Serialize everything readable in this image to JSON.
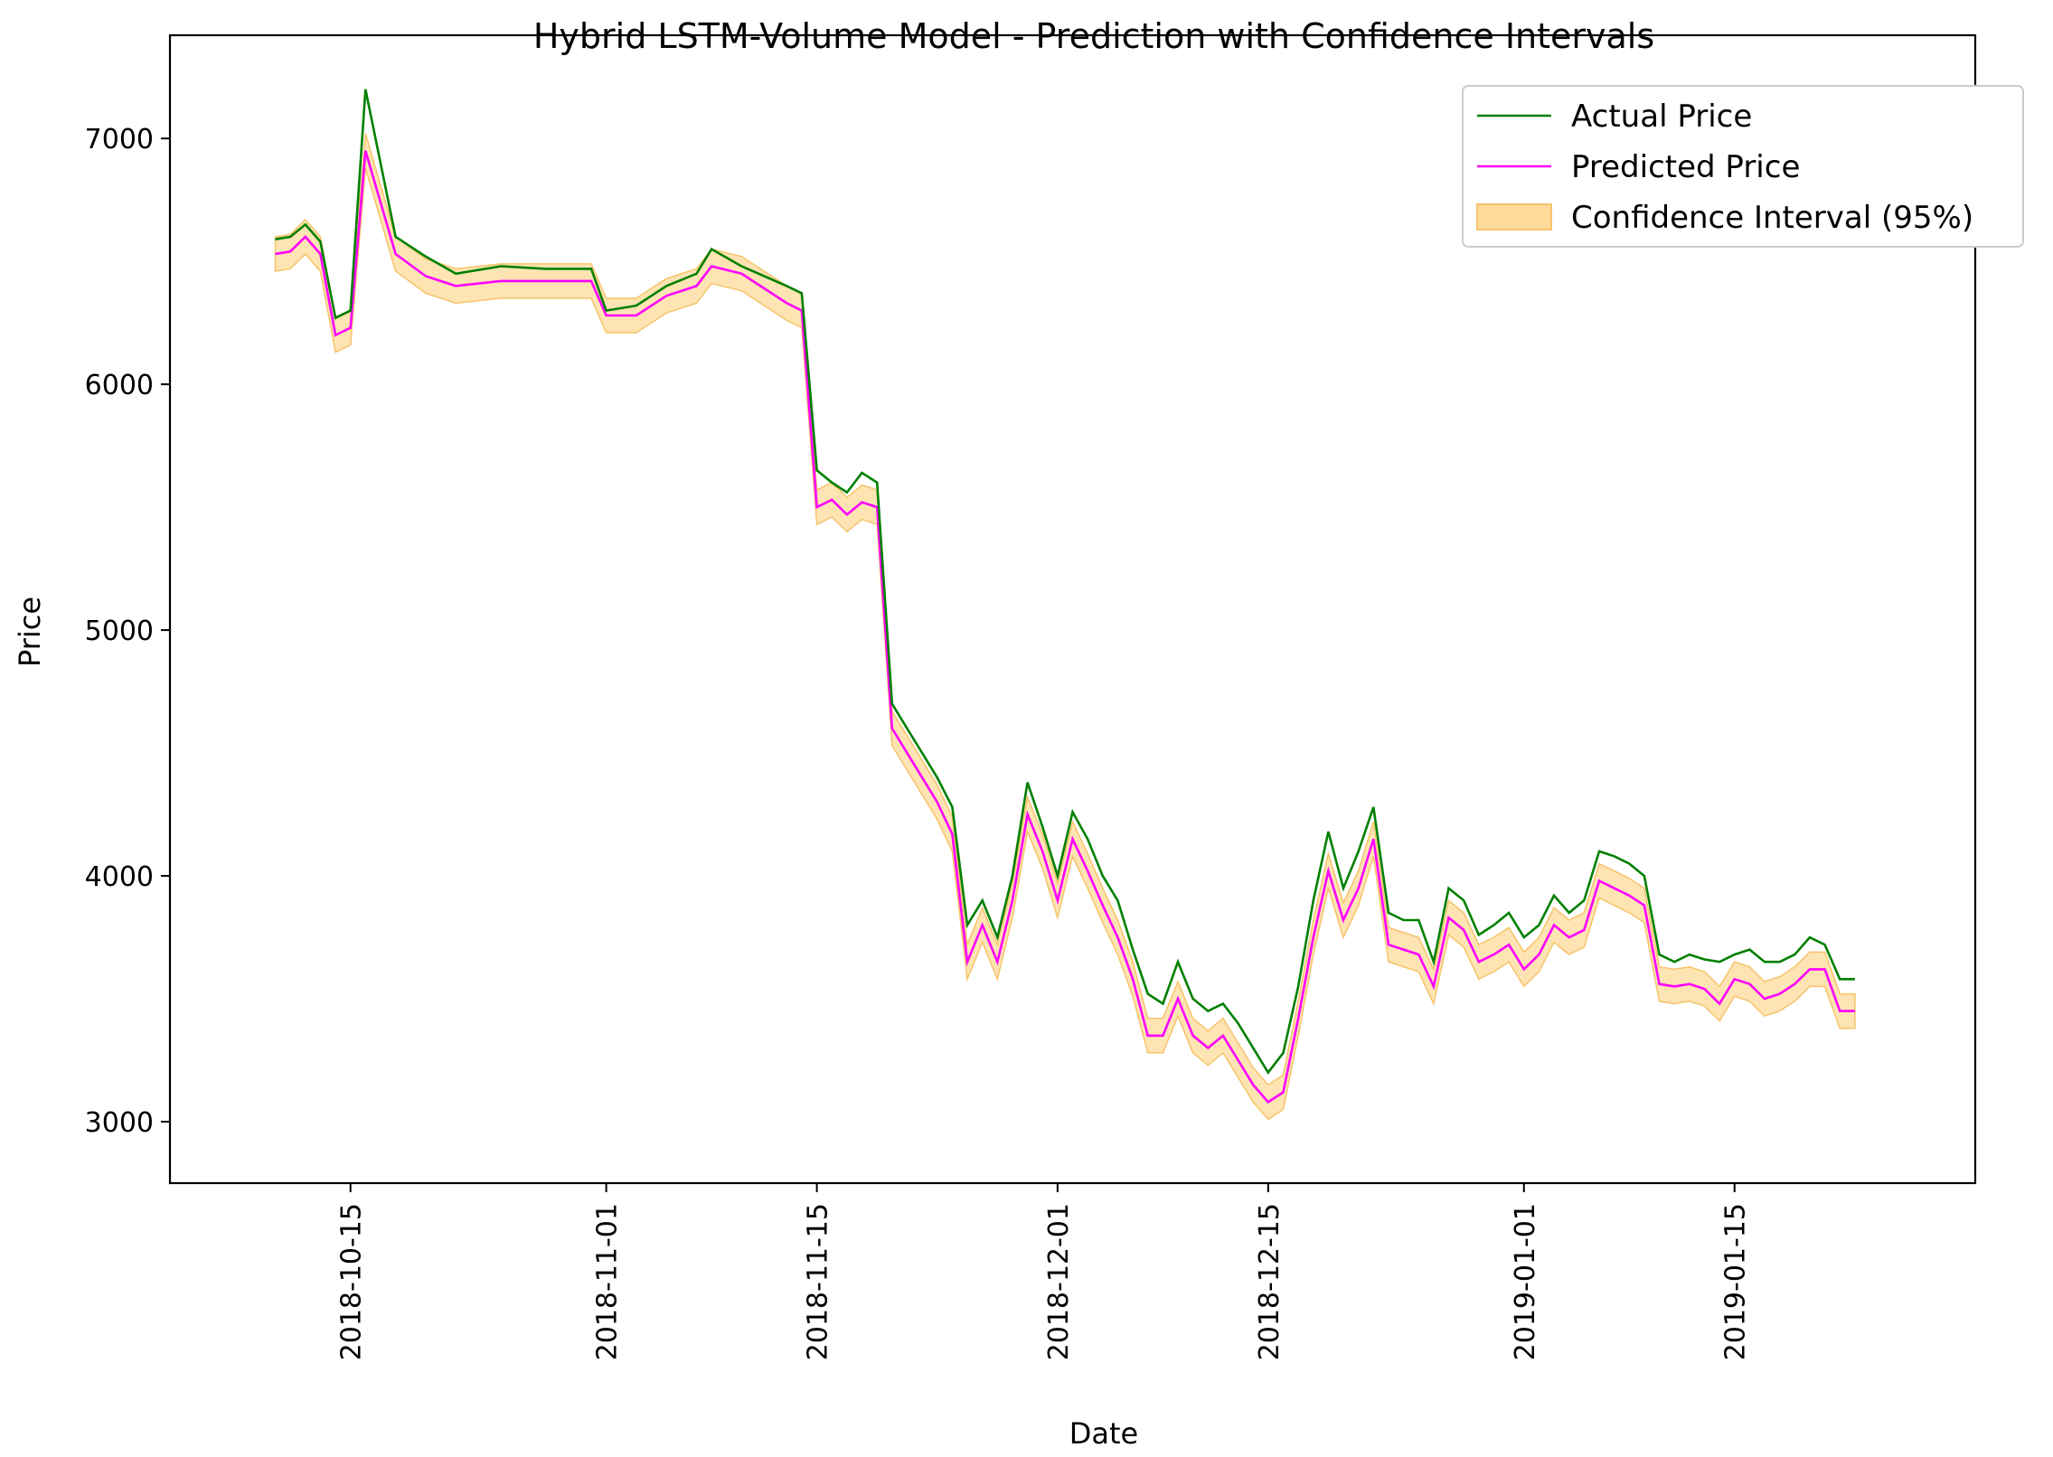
{
  "chart_data": {
    "type": "line",
    "title": "Hybrid LSTM-Volume Model - Prediction with Confidence Intervals",
    "xlabel": "Date",
    "ylabel": "Price",
    "ylim": [
      2750,
      7420
    ],
    "xlim": [
      "2018-10-03",
      "2019-01-31"
    ],
    "grid": false,
    "legend_position": "top-right",
    "x_ticks": [
      "2018-10-15",
      "2018-11-01",
      "2018-11-15",
      "2018-12-01",
      "2018-12-15",
      "2019-01-01",
      "2019-01-15"
    ],
    "y_ticks": [
      3000,
      4000,
      5000,
      6000,
      7000
    ],
    "colors": {
      "actual": "#008000",
      "predicted": "#ff00ff",
      "band": "#ffdb9a",
      "band_edge": "#f6c36a"
    },
    "legend": {
      "actual": "Actual Price",
      "predicted": "Predicted Price",
      "band": "Confidence Interval (95%)"
    },
    "series": [
      {
        "name": "Actual Price",
        "x": [
          "2018-10-10",
          "2018-10-11",
          "2018-10-12",
          "2018-10-13",
          "2018-10-14",
          "2018-10-15",
          "2018-10-16",
          "2018-10-18",
          "2018-10-20",
          "2018-10-22",
          "2018-10-25",
          "2018-10-28",
          "2018-10-31",
          "2018-11-01",
          "2018-11-03",
          "2018-11-05",
          "2018-11-07",
          "2018-11-08",
          "2018-11-10",
          "2018-11-13",
          "2018-11-14",
          "2018-11-15",
          "2018-11-16",
          "2018-11-17",
          "2018-11-18",
          "2018-11-19",
          "2018-11-20",
          "2018-11-21",
          "2018-11-22",
          "2018-11-23",
          "2018-11-24",
          "2018-11-25",
          "2018-11-26",
          "2018-11-27",
          "2018-11-28",
          "2018-11-29",
          "2018-11-30",
          "2018-12-01",
          "2018-12-02",
          "2018-12-03",
          "2018-12-04",
          "2018-12-05",
          "2018-12-06",
          "2018-12-07",
          "2018-12-08",
          "2018-12-09",
          "2018-12-10",
          "2018-12-11",
          "2018-12-12",
          "2018-12-13",
          "2018-12-14",
          "2018-12-15",
          "2018-12-16",
          "2018-12-17",
          "2018-12-18",
          "2018-12-19",
          "2018-12-20",
          "2018-12-21",
          "2018-12-22",
          "2018-12-23",
          "2018-12-24",
          "2018-12-25",
          "2018-12-26",
          "2018-12-27",
          "2018-12-28",
          "2018-12-29",
          "2018-12-30",
          "2018-12-31",
          "2019-01-01",
          "2019-01-02",
          "2019-01-03",
          "2019-01-04",
          "2019-01-05",
          "2019-01-06",
          "2019-01-07",
          "2019-01-08",
          "2019-01-09",
          "2019-01-10",
          "2019-01-11",
          "2019-01-12",
          "2019-01-13",
          "2019-01-14",
          "2019-01-15",
          "2019-01-16",
          "2019-01-17",
          "2019-01-18",
          "2019-01-19",
          "2019-01-20",
          "2019-01-21",
          "2019-01-22",
          "2019-01-23"
        ],
        "values": [
          6590,
          6600,
          6650,
          6580,
          6270,
          6300,
          7200,
          6600,
          6520,
          6450,
          6480,
          6470,
          6470,
          6300,
          6320,
          6400,
          6450,
          6550,
          6480,
          6400,
          6370,
          5650,
          5600,
          5560,
          5640,
          5600,
          4700,
          4600,
          4500,
          4400,
          4280,
          3800,
          3900,
          3750,
          4000,
          4380,
          4200,
          4000,
          4260,
          4150,
          4000,
          3900,
          3700,
          3520,
          3480,
          3650,
          3500,
          3450,
          3480,
          3400,
          3300,
          3200,
          3280,
          3550,
          3900,
          4180,
          3950,
          4100,
          4280,
          3850,
          3820,
          3820,
          3650,
          3950,
          3900,
          3760,
          3800,
          3850,
          3750,
          3800,
          3920,
          3850,
          3900,
          4100,
          4080,
          4050,
          4000,
          3680,
          3650,
          3680,
          3660,
          3650,
          3680,
          3700,
          3650,
          3650,
          3680,
          3750,
          3720,
          3580,
          3580
        ]
      },
      {
        "name": "Predicted Price",
        "x": [
          "2018-10-10",
          "2018-10-11",
          "2018-10-12",
          "2018-10-13",
          "2018-10-14",
          "2018-10-15",
          "2018-10-16",
          "2018-10-18",
          "2018-10-20",
          "2018-10-22",
          "2018-10-25",
          "2018-10-28",
          "2018-10-31",
          "2018-11-01",
          "2018-11-03",
          "2018-11-05",
          "2018-11-07",
          "2018-11-08",
          "2018-11-10",
          "2018-11-13",
          "2018-11-14",
          "2018-11-15",
          "2018-11-16",
          "2018-11-17",
          "2018-11-18",
          "2018-11-19",
          "2018-11-20",
          "2018-11-21",
          "2018-11-22",
          "2018-11-23",
          "2018-11-24",
          "2018-11-25",
          "2018-11-26",
          "2018-11-27",
          "2018-11-28",
          "2018-11-29",
          "2018-11-30",
          "2018-12-01",
          "2018-12-02",
          "2018-12-03",
          "2018-12-04",
          "2018-12-05",
          "2018-12-06",
          "2018-12-07",
          "2018-12-08",
          "2018-12-09",
          "2018-12-10",
          "2018-12-11",
          "2018-12-12",
          "2018-12-13",
          "2018-12-14",
          "2018-12-15",
          "2018-12-16",
          "2018-12-17",
          "2018-12-18",
          "2018-12-19",
          "2018-12-20",
          "2018-12-21",
          "2018-12-22",
          "2018-12-23",
          "2018-12-24",
          "2018-12-25",
          "2018-12-26",
          "2018-12-27",
          "2018-12-28",
          "2018-12-29",
          "2018-12-30",
          "2018-12-31",
          "2019-01-01",
          "2019-01-02",
          "2019-01-03",
          "2019-01-04",
          "2019-01-05",
          "2019-01-06",
          "2019-01-07",
          "2019-01-08",
          "2019-01-09",
          "2019-01-10",
          "2019-01-11",
          "2019-01-12",
          "2019-01-13",
          "2019-01-14",
          "2019-01-15",
          "2019-01-16",
          "2019-01-17",
          "2019-01-18",
          "2019-01-19",
          "2019-01-20",
          "2019-01-21",
          "2019-01-22",
          "2019-01-23"
        ],
        "values": [
          6530,
          6540,
          6600,
          6530,
          6200,
          6230,
          6950,
          6530,
          6440,
          6400,
          6420,
          6420,
          6420,
          6280,
          6280,
          6360,
          6400,
          6480,
          6450,
          6330,
          6300,
          5500,
          5530,
          5470,
          5520,
          5500,
          4600,
          4500,
          4400,
          4300,
          4170,
          3650,
          3800,
          3650,
          3900,
          4250,
          4100,
          3900,
          4150,
          4020,
          3880,
          3750,
          3580,
          3350,
          3350,
          3500,
          3350,
          3300,
          3350,
          3250,
          3150,
          3080,
          3120,
          3420,
          3750,
          4020,
          3820,
          3950,
          4150,
          3720,
          3700,
          3680,
          3550,
          3830,
          3780,
          3650,
          3680,
          3720,
          3620,
          3680,
          3800,
          3750,
          3780,
          3980,
          3950,
          3920,
          3880,
          3560,
          3550,
          3560,
          3540,
          3480,
          3580,
          3560,
          3500,
          3520,
          3560,
          3620,
          3620,
          3450,
          3450
        ]
      }
    ],
    "band_margin": 70
  }
}
